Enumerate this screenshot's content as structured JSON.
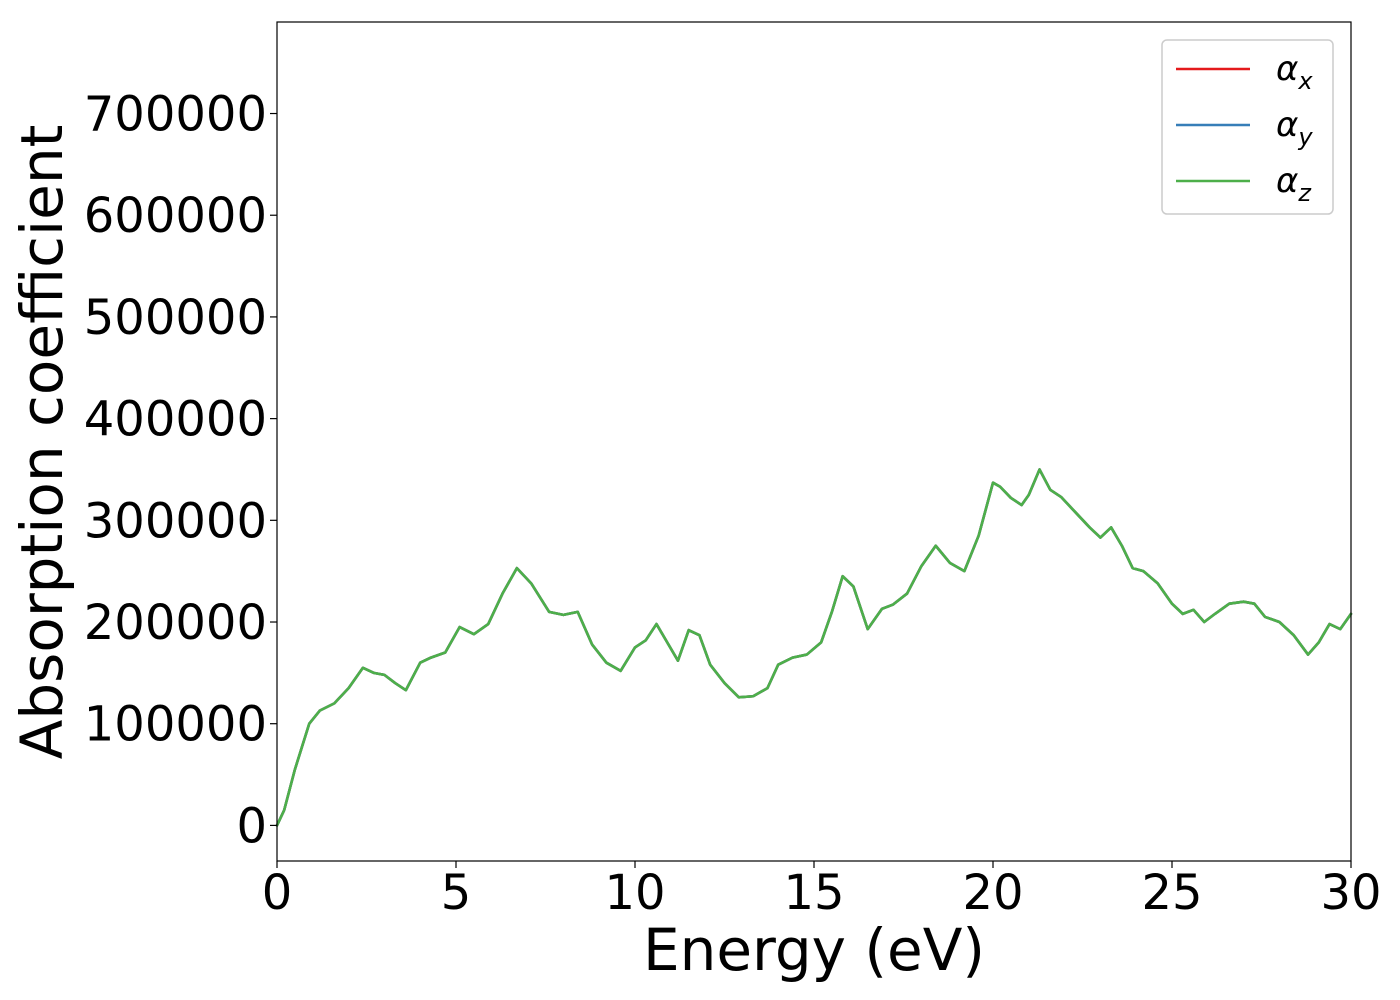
{
  "chart_data": {
    "type": "line",
    "xlabel": "Energy (eV)",
    "ylabel": "Absorption coefficient",
    "xlim": [
      0,
      30
    ],
    "ylim": [
      -35000,
      790000
    ],
    "xticks": [
      0,
      5,
      10,
      15,
      20,
      25,
      30
    ],
    "xtick_labels": [
      "0",
      "5",
      "10",
      "15",
      "20",
      "25",
      "30"
    ],
    "yticks": [
      0,
      100000,
      200000,
      300000,
      400000,
      500000,
      600000,
      700000
    ],
    "ytick_labels": [
      "0",
      "100000",
      "200000",
      "300000",
      "400000",
      "500000",
      "600000",
      "700000"
    ],
    "grid": false,
    "legend_position": "top-right",
    "x": [
      0,
      0.2,
      0.5,
      0.9,
      1.2,
      1.6,
      2.0,
      2.4,
      2.7,
      3.0,
      3.3,
      3.6,
      4.0,
      4.3,
      4.7,
      5.1,
      5.5,
      5.9,
      6.3,
      6.7,
      7.1,
      7.6,
      8.0,
      8.4,
      8.8,
      9.2,
      9.6,
      10.0,
      10.3,
      10.6,
      10.9,
      11.2,
      11.5,
      11.8,
      12.1,
      12.5,
      12.9,
      13.3,
      13.7,
      14.0,
      14.4,
      14.8,
      15.2,
      15.5,
      15.8,
      16.1,
      16.5,
      16.9,
      17.2,
      17.6,
      18.0,
      18.4,
      18.8,
      19.2,
      19.6,
      20.0,
      20.2,
      20.5,
      20.8,
      21.0,
      21.3,
      21.6,
      21.9,
      22.3,
      22.7,
      23.0,
      23.3,
      23.6,
      23.9,
      24.2,
      24.6,
      25.0,
      25.3,
      25.6,
      25.9,
      26.2,
      26.6,
      27.0,
      27.3,
      27.6,
      28.0,
      28.4,
      28.8,
      29.1,
      29.4,
      29.7,
      30.0
    ],
    "series": [
      {
        "name": "αx",
        "color": "#e41a1c",
        "values": [
          0,
          15000,
          55000,
          100000,
          113000,
          120000,
          135000,
          155000,
          150000,
          148000,
          140000,
          133000,
          160000,
          165000,
          170000,
          195000,
          188000,
          198000,
          228000,
          253000,
          238000,
          210000,
          207000,
          210000,
          178000,
          160000,
          152000,
          175000,
          182000,
          198000,
          180000,
          162000,
          192000,
          187000,
          158000,
          140000,
          126000,
          127000,
          135000,
          158000,
          165000,
          168000,
          180000,
          210000,
          245000,
          235000,
          193000,
          213000,
          217000,
          228000,
          255000,
          275000,
          258000,
          250000,
          285000,
          337000,
          333000,
          322000,
          315000,
          325000,
          350000,
          330000,
          323000,
          308000,
          293000,
          283000,
          293000,
          275000,
          253000,
          250000,
          238000,
          218000,
          208000,
          212000,
          200000,
          208000,
          218000,
          220000,
          218000,
          205000,
          200000,
          187000,
          168000,
          180000,
          198000,
          193000,
          208000
        ]
      },
      {
        "name": "αy",
        "color": "#377eb8",
        "values": [
          0,
          15000,
          55000,
          100000,
          113000,
          120000,
          135000,
          155000,
          150000,
          148000,
          140000,
          133000,
          160000,
          165000,
          170000,
          195000,
          188000,
          198000,
          228000,
          253000,
          238000,
          210000,
          207000,
          210000,
          178000,
          160000,
          152000,
          175000,
          182000,
          198000,
          180000,
          162000,
          192000,
          187000,
          158000,
          140000,
          126000,
          127000,
          135000,
          158000,
          165000,
          168000,
          180000,
          210000,
          245000,
          235000,
          193000,
          213000,
          217000,
          228000,
          255000,
          275000,
          258000,
          250000,
          285000,
          337000,
          333000,
          322000,
          315000,
          325000,
          350000,
          330000,
          323000,
          308000,
          293000,
          283000,
          293000,
          275000,
          253000,
          250000,
          238000,
          218000,
          208000,
          212000,
          200000,
          208000,
          218000,
          220000,
          218000,
          205000,
          200000,
          187000,
          168000,
          180000,
          198000,
          193000,
          208000
        ]
      },
      {
        "name": "αz",
        "color": "#4daf4a",
        "values": [
          0,
          15000,
          55000,
          100000,
          113000,
          120000,
          135000,
          155000,
          150000,
          148000,
          140000,
          133000,
          160000,
          165000,
          170000,
          195000,
          188000,
          198000,
          228000,
          253000,
          238000,
          210000,
          207000,
          210000,
          178000,
          160000,
          152000,
          175000,
          182000,
          198000,
          180000,
          162000,
          192000,
          187000,
          158000,
          140000,
          126000,
          127000,
          135000,
          158000,
          165000,
          168000,
          180000,
          210000,
          245000,
          235000,
          193000,
          213000,
          217000,
          228000,
          255000,
          275000,
          258000,
          250000,
          285000,
          337000,
          333000,
          322000,
          315000,
          325000,
          350000,
          330000,
          323000,
          308000,
          293000,
          283000,
          293000,
          275000,
          253000,
          250000,
          238000,
          218000,
          208000,
          212000,
          200000,
          208000,
          218000,
          220000,
          218000,
          205000,
          200000,
          187000,
          168000,
          180000,
          198000,
          193000,
          208000
        ]
      }
    ],
    "legend": [
      {
        "symbol": "α",
        "subscript": "x"
      },
      {
        "symbol": "α",
        "subscript": "y"
      },
      {
        "symbol": "α",
        "subscript": "z"
      }
    ]
  }
}
